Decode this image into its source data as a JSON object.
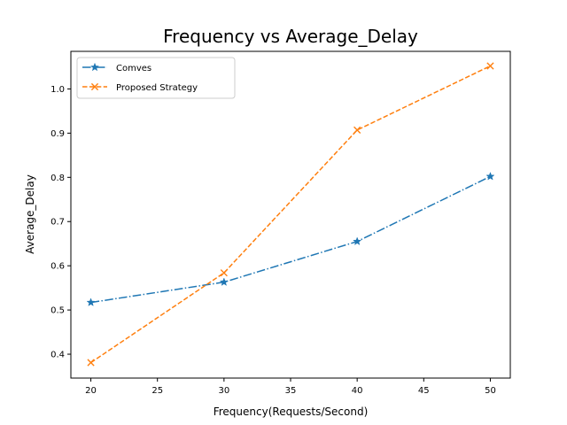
{
  "chart_data": {
    "type": "line",
    "title": "Frequency vs Average_Delay",
    "xlabel": "Frequency(Requests/Second)",
    "ylabel": "Average_Delay",
    "x": [
      20,
      30,
      40,
      50
    ],
    "xlim": [
      18.5,
      51.5
    ],
    "ylim": [
      0.346,
      1.085
    ],
    "xticks": [
      20,
      25,
      30,
      35,
      40,
      45,
      50
    ],
    "yticks": [
      0.4,
      0.5,
      0.6,
      0.7,
      0.8,
      0.9,
      1.0
    ],
    "grid": false,
    "legend_position": "upper-left",
    "series": [
      {
        "name": "Comves",
        "values": [
          0.517,
          0.563,
          0.655,
          0.802
        ],
        "color": "#1f77b4",
        "marker": "star",
        "linestyle": "dashdot"
      },
      {
        "name": "Proposed Strategy",
        "values": [
          0.381,
          0.584,
          0.907,
          1.052
        ],
        "color": "#ff7f0e",
        "marker": "x",
        "linestyle": "dashed"
      }
    ]
  }
}
